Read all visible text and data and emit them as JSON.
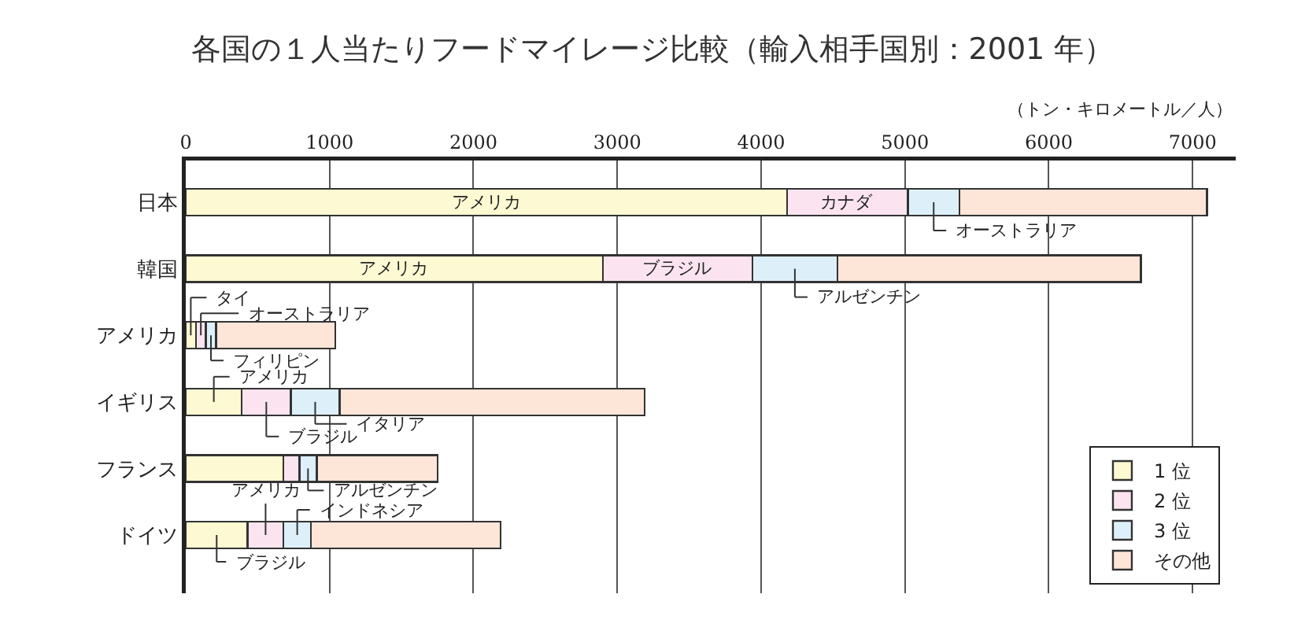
{
  "chart_data": {
    "type": "bar",
    "orientation": "horizontal",
    "stacked": true,
    "title": "各国の１人当たりフードマイレージ比較（輸入相手国別：2001 年）",
    "xlabel": "（トン・キロメートル／人）",
    "categories": [
      "日本",
      "韓国",
      "アメリカ",
      "イギリス",
      "フランス",
      "ドイツ"
    ],
    "series": [
      {
        "name": "1 位",
        "color": "#fdf9d2",
        "values": [
          4180,
          2900,
          70,
          390,
          680,
          430
        ],
        "value_labels": [
          "アメリカ",
          "アメリカ",
          "タイ",
          "アメリカ",
          null,
          "ブラジル"
        ]
      },
      {
        "name": "2 位",
        "color": "#fbe4ef",
        "values": [
          840,
          1040,
          70,
          340,
          110,
          250
        ],
        "value_labels": [
          "カナダ",
          "ブラジル",
          "オーストラリア",
          "ブラジル",
          null,
          "アメリカ"
        ]
      },
      {
        "name": "3 位",
        "color": "#ddf0fa",
        "values": [
          360,
          590,
          70,
          340,
          120,
          190
        ],
        "value_labels": [
          "オーストラリア",
          "アルゼンチン",
          "フィリピン",
          "イタリア",
          "アルゼンチン",
          "インドネシア"
        ]
      },
      {
        "name": "その他",
        "color": "#fde5d8",
        "values": [
          1720,
          2110,
          830,
          2120,
          840,
          1320
        ]
      }
    ],
    "xlim": [
      0,
      7300
    ],
    "xticks": [
      0,
      1000,
      2000,
      3000,
      4000,
      5000,
      6000,
      7000
    ],
    "grid": "x",
    "legend": "bottom right"
  }
}
